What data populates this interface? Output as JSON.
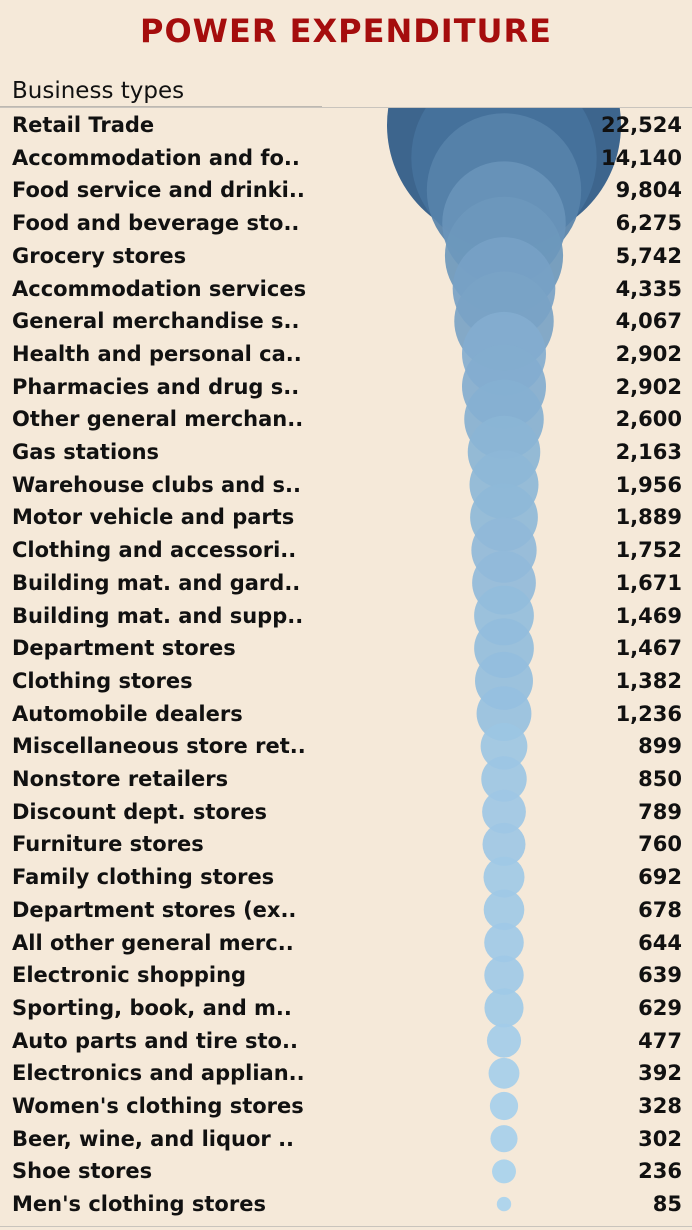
{
  "title": "POWER EXPENDITURE",
  "column_header": "Business types",
  "colors": {
    "title": "#a50d0d",
    "background": "#f5e9d9",
    "bubble_light": "#a9d2ee",
    "bubble_dark": "#2c5987"
  },
  "chart_data": {
    "type": "bubble",
    "title": "POWER EXPENDITURE",
    "category_header": "Business types",
    "categories": [
      "Retail Trade",
      "Accommodation and fo..",
      "Food service and drinki..",
      "Food and beverage sto..",
      "Grocery stores",
      "Accommodation services",
      "General merchandise s..",
      "Health and personal ca..",
      "Pharmacies and drug s..",
      "Other general merchan..",
      "Gas stations",
      "Warehouse clubs and s..",
      "Motor vehicle and parts",
      "Clothing and accessori..",
      "Building mat. and gard..",
      "Building mat. and supp..",
      "Department stores",
      "Clothing stores",
      "Automobile dealers",
      "Miscellaneous store ret..",
      "Nonstore retailers",
      "Discount dept. stores",
      "Furniture stores",
      "Family clothing stores",
      "Department stores (ex..",
      "All other general merc..",
      "Electronic shopping",
      "Sporting, book, and  m..",
      "Auto parts and tire sto..",
      "Electronics and applian..",
      "Women's clothing stores",
      "Beer, wine, and liquor ..",
      "Shoe stores",
      "Men's clothing stores"
    ],
    "values": [
      22524,
      14140,
      9804,
      6275,
      5742,
      4335,
      4067,
      2902,
      2902,
      2600,
      2163,
      1956,
      1889,
      1752,
      1671,
      1469,
      1467,
      1382,
      1236,
      899,
      850,
      789,
      760,
      692,
      678,
      644,
      639,
      629,
      477,
      392,
      328,
      302,
      236,
      85
    ],
    "value_labels": [
      "22,524",
      "14,140",
      "9,804",
      "6,275",
      "5,742",
      "4,335",
      "4,067",
      "2,902",
      "2,902",
      "2,600",
      "2,163",
      "1,956",
      "1,889",
      "1,752",
      "1,671",
      "1,469",
      "1,467",
      "1,382",
      "1,236",
      "899",
      "850",
      "789",
      "760",
      "692",
      "678",
      "644",
      "639",
      "629",
      "477",
      "392",
      "328",
      "302",
      "236",
      "85"
    ],
    "size_encodes": "value",
    "color_encodes": "value"
  }
}
